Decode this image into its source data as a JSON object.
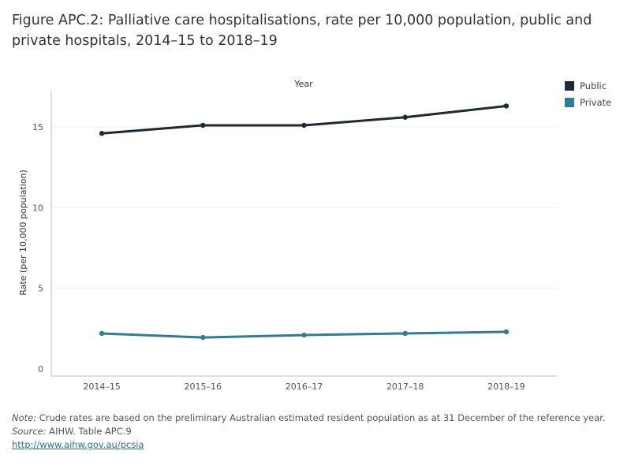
{
  "title": "Figure APC.2: Palliative care hospitalisations, rate per 10,000 population, public and private hospitals, 2014–15 to 2018–19",
  "chart_data": {
    "type": "line",
    "title": "Figure APC.2: Palliative care hospitalisations, rate per 10,000 population, public and private hospitals, 2014–15 to 2018–19",
    "xlabel": "Year",
    "ylabel": "Rate (per 10,000 population)",
    "categories": [
      "2014–15",
      "2015–16",
      "2016–17",
      "2017–18",
      "2018–19"
    ],
    "ylim": [
      0,
      17.2
    ],
    "yticks": [
      0,
      5,
      10,
      15
    ],
    "grid": true,
    "legend_position": "top-right",
    "series": [
      {
        "name": "Public",
        "color": "#1c2b33",
        "values": [
          14.6,
          15.1,
          15.1,
          15.6,
          16.3
        ]
      },
      {
        "name": "Private",
        "color": "#2e7d96",
        "values": [
          2.2,
          1.95,
          2.1,
          2.2,
          2.3
        ]
      }
    ]
  },
  "footer": {
    "note_label": "Note:",
    "note_text": " Crude rates are based on the preliminary Australian estimated resident population as at 31 December of the reference year.",
    "source_label": "Source:",
    "source_text": " AIHW. Table APC.9",
    "link_text": "http://www.aihw.gov.au/pcsia"
  }
}
